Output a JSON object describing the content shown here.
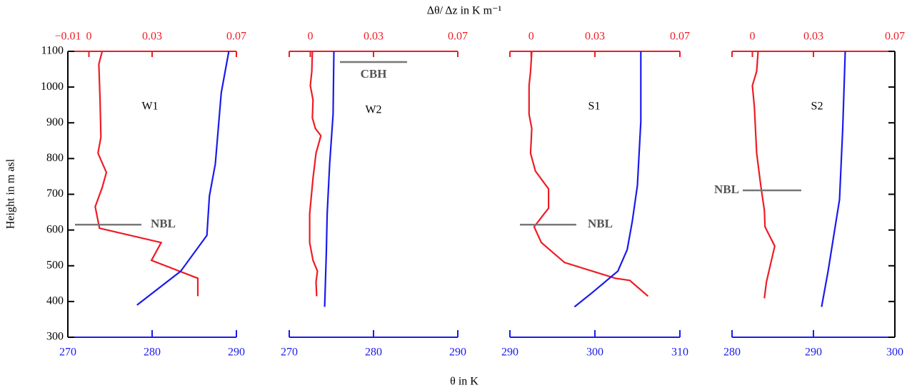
{
  "x2_label": "Δθ/ Δz in K m⁻¹",
  "x_label": "θ in K",
  "y_label": "Height  in m asl",
  "chart_data": [
    {
      "type": "line",
      "label": "W1",
      "ylim": [
        300,
        1100
      ],
      "yticks": [
        300,
        400,
        500,
        600,
        700,
        800,
        900,
        1000,
        1100
      ],
      "y_axis": "left",
      "ytick_labels": true,
      "xlim": [
        270,
        290
      ],
      "xticks": [
        270,
        280,
        290
      ],
      "x2lim": [
        -0.01,
        0.07
      ],
      "x2ticks": [
        {
          "value": -0.01,
          "label": "−0.01"
        },
        0,
        0.03,
        0.07
      ],
      "series": [
        {
          "color": "#ee1c24",
          "axis": "x2",
          "values": [
            0.0063,
            0.0047,
            0.0053,
            0.0057,
            0.0043,
            0.0083,
            0.0063,
            0.003,
            0.005,
            0.0343,
            0.0297,
            0.0517,
            0.0517
          ],
          "heights": [
            1100,
            1064,
            964,
            860,
            815,
            761,
            719,
            665,
            605,
            565,
            515,
            465,
            415
          ]
        },
        {
          "color": "#1a1aee",
          "values": [
            289.1,
            288.2,
            287.5,
            286.8,
            286.5,
            283.4,
            278.2
          ],
          "heights": [
            1100,
            984,
            785,
            695,
            585,
            485,
            390
          ]
        }
      ],
      "annotations": [
        {
          "text": "NBL",
          "height": 615
        }
      ]
    },
    {
      "type": "line",
      "label": "W2",
      "ylim": [
        300,
        1100
      ],
      "xlim": [
        270,
        290
      ],
      "xticks": [
        270,
        280,
        290
      ],
      "x2lim": [
        -0.01,
        0.07
      ],
      "x2ticks": [
        0,
        0.03,
        0.07
      ],
      "series": [
        {
          "color": "#ee1c24",
          "axis": "x2",
          "values": [
            0.001,
            0.0007,
            0,
            0.0013,
            0.001,
            0.0024,
            0.005,
            0.0027,
            0.0013,
            -0.0003,
            -0.0003,
            0.0013,
            0.0034,
            0.0027,
            0.003
          ],
          "heights": [
            1100,
            1044,
            1004,
            964,
            914,
            884,
            864,
            815,
            745,
            645,
            565,
            515,
            485,
            455,
            415
          ]
        },
        {
          "color": "#1a1aee",
          "values": [
            275.3,
            275.2,
            274.8,
            274.5,
            274.4,
            274.2
          ],
          "heights": [
            1100,
            924,
            785,
            645,
            535,
            385
          ]
        }
      ],
      "annotations": [
        {
          "text": "CBH",
          "height": 1070
        }
      ]
    },
    {
      "type": "line",
      "label": "S1",
      "ylim": [
        300,
        1100
      ],
      "xlim": [
        290,
        310
      ],
      "xticks": [
        290,
        300,
        310
      ],
      "x2lim": [
        -0.01,
        0.07
      ],
      "x2ticks": [
        0,
        0.03,
        0.07
      ],
      "series": [
        {
          "color": "#ee1c24",
          "axis": "x2",
          "values": [
            0.0003,
            -0.0003,
            -0.001,
            -0.001,
            0.0003,
            -0.0003,
            0.002,
            0.0082,
            0.0082,
            0.0014,
            0.0048,
            0.0157,
            0.0396,
            0.0464,
            0.055
          ],
          "heights": [
            1100,
            1044,
            1004,
            924,
            884,
            815,
            765,
            715,
            661,
            609,
            565,
            509,
            465,
            459,
            415
          ]
        },
        {
          "color": "#1a1aee",
          "values": [
            305.4,
            305.4,
            305,
            304.4,
            303.8,
            302.7,
            299.7,
            297.6
          ],
          "heights": [
            1100,
            904,
            725,
            625,
            545,
            485,
            425,
            385
          ]
        }
      ],
      "annotations": [
        {
          "text": "NBL",
          "height": 615
        }
      ]
    },
    {
      "type": "line",
      "label": "S2",
      "ylim": [
        300,
        1100
      ],
      "yticks": [
        300,
        400,
        500,
        600,
        700,
        800,
        900,
        1000,
        1100
      ],
      "y_axis": "right",
      "ytick_labels": false,
      "xlim": [
        280,
        300
      ],
      "xticks": [
        280,
        290,
        300
      ],
      "x2lim": [
        -0.01,
        0.07
      ],
      "x2ticks": [
        0,
        0.03,
        0.07
      ],
      "series": [
        {
          "color": "#ee1c24",
          "axis": "x2",
          "values": [
            0.0028,
            0.0021,
            0,
            0.001,
            0.0021,
            0.0041,
            0.0059,
            0.0062,
            0.011,
            0.0069,
            0.0059
          ],
          "heights": [
            1100,
            1044,
            1004,
            944,
            815,
            725,
            655,
            609,
            555,
            455,
            409
          ]
        },
        {
          "color": "#1a1aee",
          "values": [
            293.9,
            293.6,
            293.2,
            292.5,
            291.8,
            291
          ],
          "heights": [
            1100,
            884,
            685,
            585,
            485,
            385
          ]
        }
      ],
      "annotations": [
        {
          "text": "NBL",
          "height": 711
        }
      ]
    }
  ]
}
